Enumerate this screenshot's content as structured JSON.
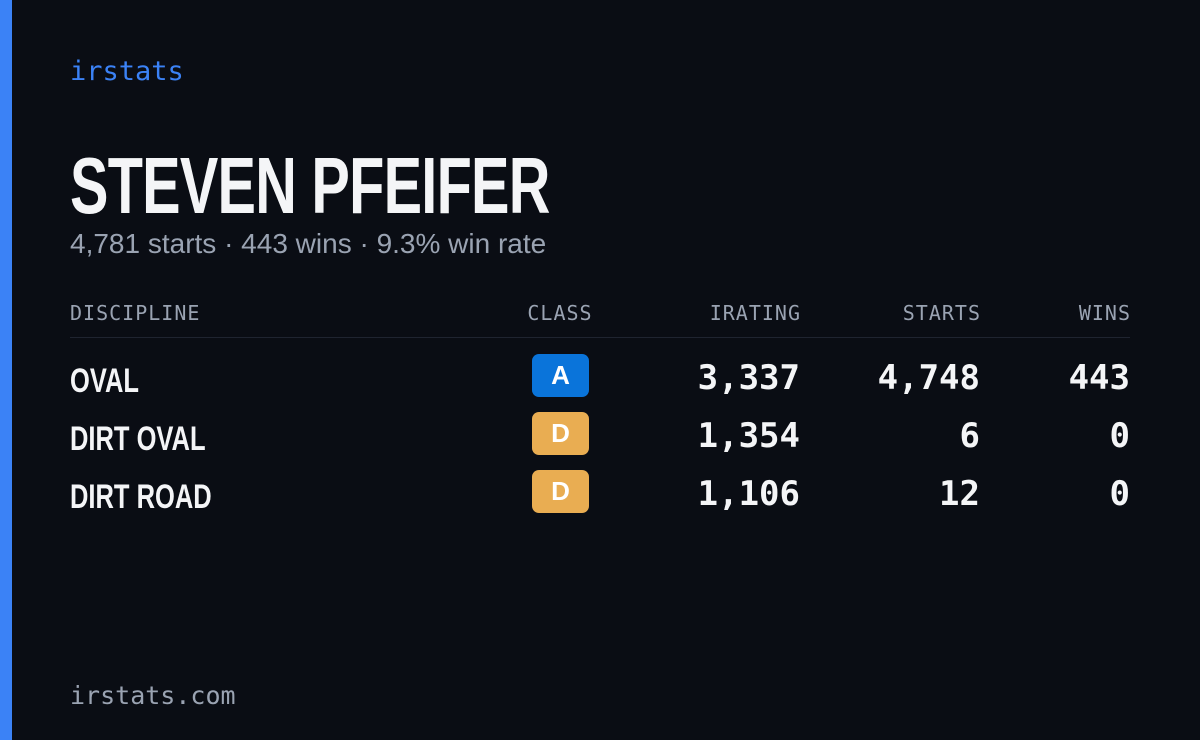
{
  "brand": "irstats",
  "name": "STEVEN PFEIFER",
  "summary": "4,781 starts · 443 wins · 9.3% win rate",
  "table": {
    "headers": [
      "DISCIPLINE",
      "CLASS",
      "IRATING",
      "STARTS",
      "WINS"
    ],
    "rows": [
      {
        "discipline": "OVAL",
        "class": "A",
        "class_color": "#0a74da",
        "irating": "3,337",
        "starts": "4,748",
        "wins": "443"
      },
      {
        "discipline": "DIRT OVAL",
        "class": "D",
        "class_color": "#e9ad52",
        "irating": "1,354",
        "starts": "6",
        "wins": "0"
      },
      {
        "discipline": "DIRT ROAD",
        "class": "D",
        "class_color": "#e9ad52",
        "irating": "1,106",
        "starts": "12",
        "wins": "0"
      }
    ]
  },
  "footer": "irstats.com"
}
